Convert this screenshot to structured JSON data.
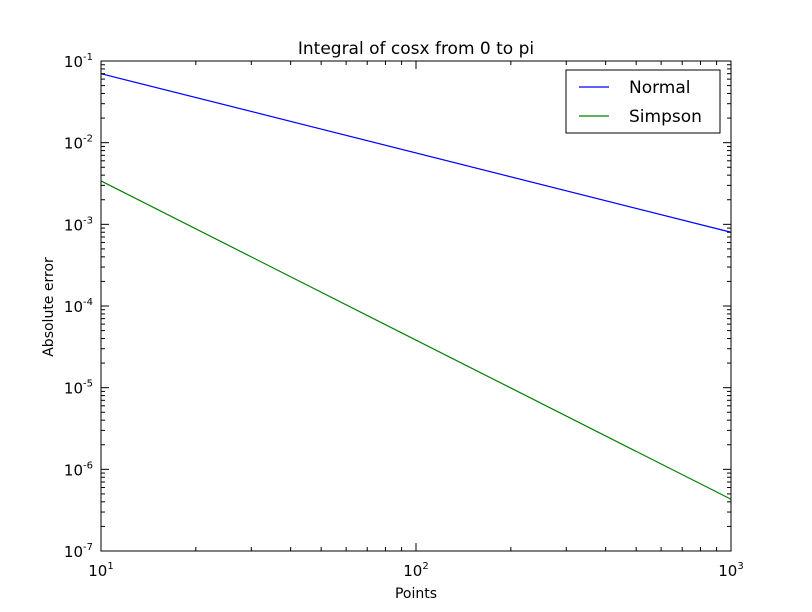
{
  "chart_data": {
    "type": "line",
    "title": "Integral of cosx from 0 to pi",
    "xlabel": "Points",
    "ylabel": "Absolute error",
    "xscale": "log",
    "yscale": "log",
    "xlim": [
      10,
      1000
    ],
    "ylim": [
      1e-07,
      0.1
    ],
    "grid": false,
    "legend_position": "top-right",
    "x_ticks": [
      {
        "value": 10,
        "base": "10",
        "exp": "1"
      },
      {
        "value": 100,
        "base": "10",
        "exp": "2"
      },
      {
        "value": 1000,
        "base": "10",
        "exp": "3"
      }
    ],
    "y_ticks": [
      {
        "value": 1e-07,
        "base": "10",
        "exp": "-7"
      },
      {
        "value": 1e-06,
        "base": "10",
        "exp": "-6"
      },
      {
        "value": 1e-05,
        "base": "10",
        "exp": "-5"
      },
      {
        "value": 0.0001,
        "base": "10",
        "exp": "-4"
      },
      {
        "value": 0.001,
        "base": "10",
        "exp": "-3"
      },
      {
        "value": 0.01,
        "base": "10",
        "exp": "-2"
      },
      {
        "value": 0.1,
        "base": "10",
        "exp": "-1"
      }
    ],
    "series": [
      {
        "name": "Normal",
        "color": "#0000ff",
        "x": [
          10,
          1000
        ],
        "y": [
          0.07,
          0.0008
        ]
      },
      {
        "name": "Simpson",
        "color": "#008000",
        "x": [
          10,
          1000
        ],
        "y": [
          0.0034,
          4.3e-07
        ]
      }
    ]
  }
}
